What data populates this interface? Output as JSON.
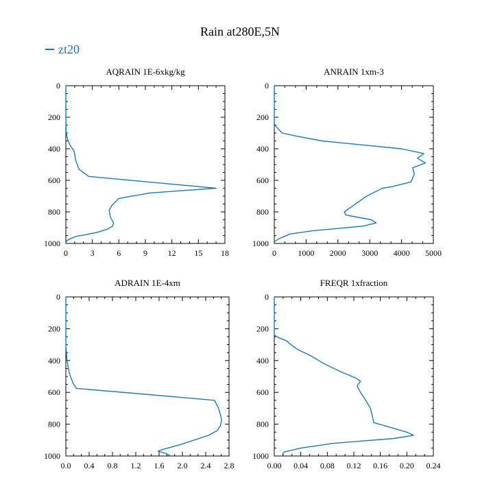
{
  "figure": {
    "title": "Rain at280E,5N",
    "legend_label": "zt20",
    "series_color": "#1f77b4"
  },
  "chart_data": [
    {
      "type": "line",
      "title": "AQRAIN  1E-6xkg/kg",
      "xlabel": "",
      "ylabel": "",
      "xlim": [
        0,
        18
      ],
      "ylim": [
        1000,
        0
      ],
      "xticks": [
        0,
        3,
        6,
        9,
        12,
        15,
        18
      ],
      "xtick_labels": [
        "0",
        "3",
        "6",
        "9",
        "12",
        "15",
        "18"
      ],
      "yticks": [
        0,
        200,
        400,
        600,
        800,
        1000
      ],
      "grid": false,
      "series": [
        {
          "name": "zt20",
          "x": [
            0,
            0,
            0.05,
            0.2,
            0.5,
            0.9,
            1.0,
            1.1,
            1.5,
            2.6,
            17.0,
            9.5,
            6.0,
            5.2,
            4.9,
            5.0,
            5.1,
            5.3,
            5.4,
            5.3,
            4.7,
            3.5,
            2.2,
            1.2,
            0.3,
            0
          ],
          "y": [
            0,
            200,
            300,
            340,
            380,
            410,
            430,
            470,
            530,
            575,
            650,
            680,
            715,
            760,
            790,
            820,
            840,
            860,
            870,
            890,
            910,
            930,
            945,
            955,
            975,
            990
          ]
        }
      ]
    },
    {
      "type": "line",
      "title": "ANRAIN  1xm-3",
      "xlabel": "",
      "ylabel": "",
      "xlim": [
        0,
        5000
      ],
      "ylim": [
        1000,
        0
      ],
      "xticks": [
        0,
        1000,
        2000,
        3000,
        4000,
        5000
      ],
      "xtick_labels": [
        "0",
        "1000",
        "2000",
        "3000",
        "4000",
        "5000"
      ],
      "yticks": [
        0,
        200,
        400,
        600,
        800,
        1000
      ],
      "grid": false,
      "series": [
        {
          "name": "zt20",
          "x": [
            0,
            0,
            60,
            250,
            700,
            1500,
            3000,
            4000,
            4700,
            4500,
            4750,
            4350,
            4400,
            4300,
            3700,
            3400,
            2900,
            2200,
            2250,
            3050,
            3200,
            2800,
            1200,
            500,
            150,
            0
          ],
          "y": [
            0,
            240,
            260,
            300,
            320,
            350,
            380,
            400,
            430,
            460,
            490,
            520,
            560,
            610,
            640,
            650,
            700,
            800,
            820,
            850,
            870,
            890,
            920,
            940,
            970,
            990
          ]
        }
      ]
    },
    {
      "type": "line",
      "title": "ADRAIN  1E-4xm",
      "xlabel": "",
      "ylabel": "",
      "xlim": [
        0,
        2.8
      ],
      "ylim": [
        1000,
        0
      ],
      "xticks": [
        0,
        0.4,
        0.8,
        1.2,
        1.6,
        2.0,
        2.4,
        2.8
      ],
      "xtick_labels": [
        "0.0",
        "0.4",
        "0.8",
        "1.2",
        "1.6",
        "2.0",
        "2.4",
        "2.8"
      ],
      "yticks": [
        0,
        200,
        400,
        600,
        800,
        1000
      ],
      "grid": false,
      "series": [
        {
          "name": "zt20",
          "x": [
            0,
            0,
            0.02,
            0.06,
            0.12,
            0.18,
            1.3,
            2.55,
            2.62,
            2.66,
            2.67,
            2.65,
            2.6,
            2.45,
            2.2,
            1.95,
            1.65,
            1.58,
            1.72,
            1.8
          ],
          "y": [
            0,
            300,
            400,
            480,
            540,
            575,
            610,
            650,
            700,
            750,
            780,
            810,
            840,
            870,
            900,
            930,
            960,
            970,
            985,
            1000
          ]
        }
      ]
    },
    {
      "type": "line",
      "title": "FREQR  1xfraction",
      "xlabel": "",
      "ylabel": "",
      "xlim": [
        0,
        0.24
      ],
      "ylim": [
        1000,
        0
      ],
      "xticks": [
        0,
        0.04,
        0.08,
        0.12,
        0.16,
        0.2,
        0.24
      ],
      "xtick_labels": [
        "0.00",
        "0.04",
        "0.08",
        "0.12",
        "0.16",
        "0.20",
        "0.24"
      ],
      "yticks": [
        0,
        200,
        400,
        600,
        800,
        1000
      ],
      "grid": false,
      "series": [
        {
          "name": "zt20",
          "x": [
            0,
            0,
            0.006,
            0.018,
            0.025,
            0.035,
            0.055,
            0.075,
            0.1,
            0.123,
            0.13,
            0.125,
            0.13,
            0.138,
            0.145,
            0.148,
            0.15,
            0.175,
            0.2,
            0.21,
            0.18,
            0.09,
            0.04,
            0.015,
            0.012
          ],
          "y": [
            0,
            240,
            255,
            275,
            300,
            330,
            370,
            420,
            470,
            510,
            530,
            560,
            600,
            650,
            700,
            750,
            790,
            820,
            850,
            870,
            890,
            920,
            950,
            975,
            990
          ]
        }
      ]
    }
  ]
}
